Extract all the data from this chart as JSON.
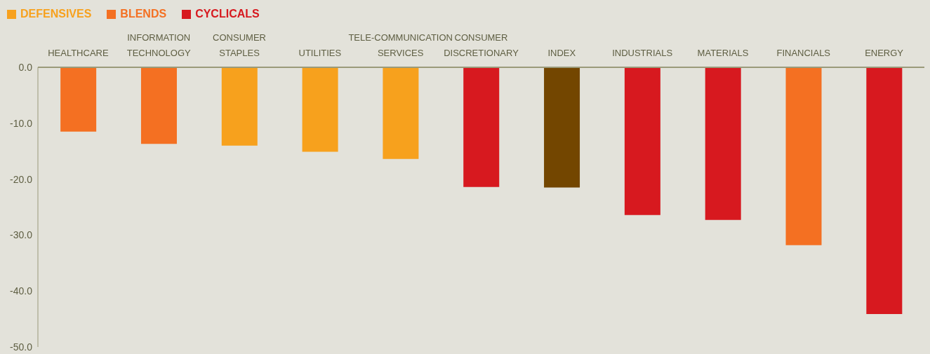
{
  "chart_data": {
    "type": "bar",
    "stacked": true,
    "categories": [
      "HEALTHCARE",
      "INFORMATION TECHNOLOGY",
      "CONSUMER STAPLES",
      "UTILITIES",
      "TELE-COMMUNICATION SERVICES",
      "CONSUMER DISCRETIONARY",
      "INDEX",
      "INDUSTRIALS",
      "MATERIALS",
      "FINANCIALS",
      "ENERGY"
    ],
    "series": [
      {
        "name": "DEFENSIVES",
        "color": "#f7a11d",
        "values": [
          null,
          null,
          -14.0,
          -15.1,
          -16.4,
          null,
          null,
          null,
          null,
          null,
          null
        ]
      },
      {
        "name": "BLENDS",
        "color": "#f47022",
        "values": [
          -11.5,
          -13.7,
          null,
          null,
          null,
          null,
          null,
          null,
          null,
          -31.8,
          null
        ]
      },
      {
        "name": "CYCLICALS",
        "color": "#d7191f",
        "values": [
          null,
          null,
          null,
          null,
          null,
          -21.4,
          null,
          -26.4,
          -27.3,
          null,
          -44.1
        ]
      },
      {
        "color": "#734600",
        "values": [
          null,
          null,
          null,
          null,
          null,
          null,
          -21.5,
          null,
          null,
          null,
          null
        ]
      }
    ],
    "ylim": [
      -50,
      0
    ],
    "yticks": [
      {
        "value": 0,
        "label": "0.0"
      },
      {
        "value": -10,
        "label": "-10.0"
      },
      {
        "value": -20,
        "label": "-20.0"
      },
      {
        "value": -30,
        "label": "-30.0"
      },
      {
        "value": -40,
        "label": "-40.0"
      },
      {
        "value": -50,
        "label": "-50.0"
      }
    ],
    "grid": false,
    "legend": "top left"
  }
}
